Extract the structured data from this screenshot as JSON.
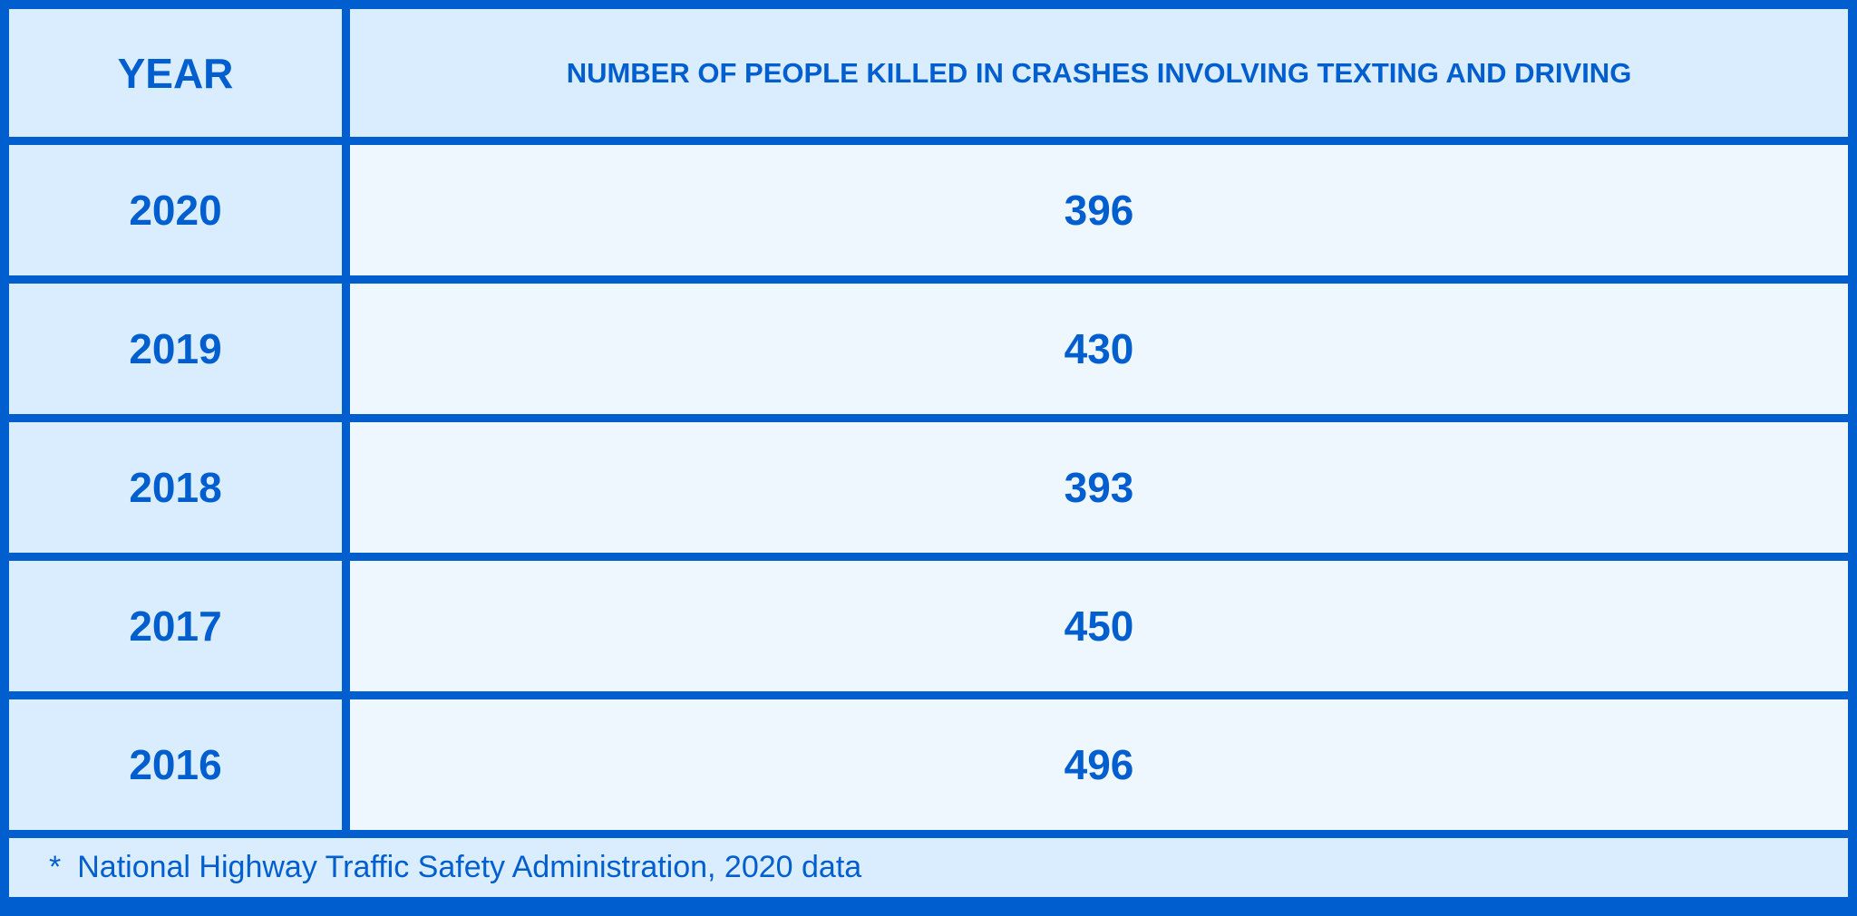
{
  "table": {
    "headers": {
      "year": "YEAR",
      "value": "NUMBER OF PEOPLE KILLED IN CRASHES INVOLVING TEXTING AND DRIVING"
    },
    "rows": [
      {
        "year": "2020",
        "value": "396"
      },
      {
        "year": "2019",
        "value": "430"
      },
      {
        "year": "2018",
        "value": "393"
      },
      {
        "year": "2017",
        "value": "450"
      },
      {
        "year": "2016",
        "value": "496"
      }
    ]
  },
  "footnote": {
    "marker": "*",
    "text": "National Highway Traffic Safety Administration, 2020 data"
  },
  "colors": {
    "accent": "#005ecf",
    "header_bg": "#d9edfe",
    "cell_bg": "#eff7fe"
  }
}
